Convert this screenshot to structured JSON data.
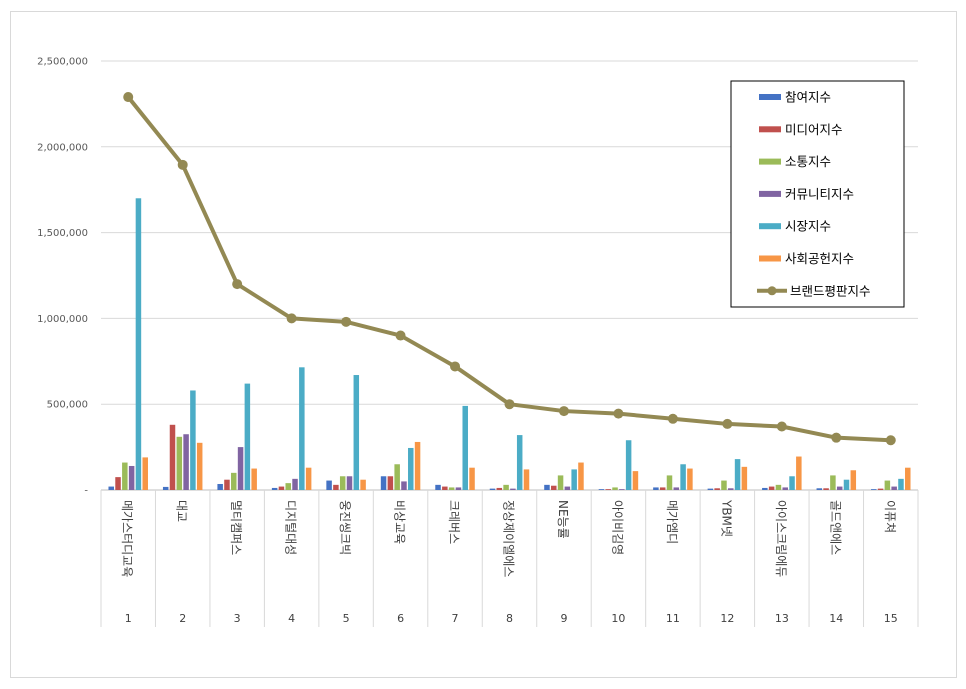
{
  "chart_data": {
    "type": "bar",
    "y_ticks": [
      "-",
      "500,000",
      "1,000,000",
      "1,500,000",
      "2,000,000",
      "2,500,000"
    ],
    "ylim": [
      0,
      2500000
    ],
    "grid": true,
    "legend_position": "top-right",
    "categories": [
      {
        "num": "1",
        "name": "메가스터디교육"
      },
      {
        "num": "2",
        "name": "대교"
      },
      {
        "num": "3",
        "name": "멀티캠퍼스"
      },
      {
        "num": "4",
        "name": "디지털대성"
      },
      {
        "num": "5",
        "name": "웅진씽크빅"
      },
      {
        "num": "6",
        "name": "비상교육"
      },
      {
        "num": "7",
        "name": "크레버스"
      },
      {
        "num": "8",
        "name": "정상제이엘에스"
      },
      {
        "num": "9",
        "name": "NE능률"
      },
      {
        "num": "10",
        "name": "아이비김영"
      },
      {
        "num": "11",
        "name": "메가엠디"
      },
      {
        "num": "12",
        "name": "YBM넷"
      },
      {
        "num": "13",
        "name": "아이스크림에듀"
      },
      {
        "num": "14",
        "name": "골드앤에스"
      },
      {
        "num": "15",
        "name": "이퓨쳐"
      }
    ],
    "series": [
      {
        "name": "참여지수",
        "kind": "bar",
        "color": "#4472c4",
        "values": [
          20000,
          18000,
          35000,
          12000,
          55000,
          80000,
          30000,
          8000,
          30000,
          5000,
          15000,
          8000,
          12000,
          10000,
          5000
        ]
      },
      {
        "name": "미디어지수",
        "kind": "bar",
        "color": "#c0504d",
        "values": [
          75000,
          380000,
          60000,
          20000,
          30000,
          80000,
          20000,
          12000,
          25000,
          5000,
          15000,
          10000,
          20000,
          10000,
          8000
        ]
      },
      {
        "name": "소통지수",
        "kind": "bar",
        "color": "#9bbb59",
        "values": [
          160000,
          310000,
          100000,
          40000,
          80000,
          150000,
          15000,
          30000,
          85000,
          15000,
          85000,
          55000,
          30000,
          85000,
          55000
        ]
      },
      {
        "name": "커뮤니티지수",
        "kind": "bar",
        "color": "#8064a2",
        "values": [
          140000,
          325000,
          250000,
          65000,
          80000,
          50000,
          15000,
          8000,
          20000,
          5000,
          15000,
          10000,
          15000,
          20000,
          20000
        ]
      },
      {
        "name": "시장지수",
        "kind": "bar",
        "color": "#4bacc6",
        "values": [
          1700000,
          580000,
          620000,
          715000,
          670000,
          245000,
          490000,
          320000,
          120000,
          290000,
          150000,
          180000,
          80000,
          60000,
          65000
        ]
      },
      {
        "name": "사회공헌지수",
        "kind": "bar",
        "color": "#f79646",
        "values": [
          190000,
          275000,
          125000,
          130000,
          60000,
          280000,
          130000,
          120000,
          160000,
          110000,
          125000,
          135000,
          195000,
          115000,
          130000
        ]
      },
      {
        "name": "브랜드평판지수",
        "kind": "line",
        "color": "#938953",
        "values": [
          2290000,
          1895000,
          1200000,
          1000000,
          980000,
          900000,
          720000,
          500000,
          460000,
          445000,
          415000,
          385000,
          370000,
          305000,
          290000
        ]
      }
    ]
  }
}
